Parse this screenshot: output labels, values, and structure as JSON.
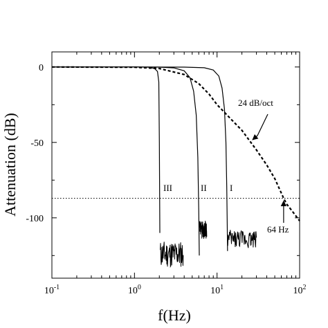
{
  "chart_data": {
    "type": "line",
    "xlabel": "f(Hz)",
    "ylabel": "Attenuation (dB)",
    "xscale": "log",
    "xlim": [
      0.1,
      100
    ],
    "ylim": [
      -140,
      10
    ],
    "x_ticks": [
      {
        "value": 0.1,
        "base": "10",
        "exp": "-1"
      },
      {
        "value": 1,
        "base": "10",
        "exp": "0"
      },
      {
        "value": 10,
        "base": "10",
        "exp": "1"
      },
      {
        "value": 100,
        "base": "10",
        "exp": "2"
      }
    ],
    "y_ticks": [
      {
        "value": 0,
        "label": "0"
      },
      {
        "value": -50,
        "label": "-50"
      },
      {
        "value": -100,
        "label": "-100"
      }
    ],
    "reference_line": {
      "y": -87,
      "style": "dotted"
    },
    "series": [
      {
        "name": "I",
        "style": "solid",
        "x": [
          0.1,
          1,
          4,
          7,
          9,
          10.5,
          11.5,
          12.3,
          12.8,
          13.1,
          13.3,
          13.4
        ],
        "y": [
          0,
          0,
          -0.1,
          -0.5,
          -2,
          -6,
          -14,
          -28,
          -50,
          -80,
          -105,
          -122
        ]
      },
      {
        "name": "II",
        "style": "solid",
        "x": [
          0.1,
          1,
          2,
          3,
          4,
          4.7,
          5.2,
          5.6,
          5.85,
          6.0,
          6.1
        ],
        "y": [
          0,
          0,
          -0.1,
          -0.6,
          -2.5,
          -7,
          -16,
          -32,
          -60,
          -95,
          -125
        ]
      },
      {
        "name": "III",
        "style": "solid",
        "x": [
          0.1,
          1,
          1.5,
          1.75,
          1.9,
          1.97,
          2.0,
          2.03
        ],
        "y": [
          0,
          0,
          -0.2,
          -1,
          -3,
          -10,
          -50,
          -110
        ]
      },
      {
        "name": "24 dB/oct",
        "style": "dashed",
        "x": [
          0.1,
          1,
          2,
          4,
          6,
          8,
          10,
          15,
          20,
          30,
          40,
          50,
          64,
          70,
          80,
          100
        ],
        "y": [
          0,
          -0.2,
          -1,
          -5,
          -11,
          -18,
          -25,
          -35,
          -42,
          -55,
          -65,
          -74,
          -87,
          -91,
          -95,
          -102
        ]
      }
    ],
    "annotations": [
      {
        "text": "24 dB/oct",
        "points_to": {
          "x": 35,
          "y": -52
        }
      },
      {
        "text": "64 Hz",
        "points_to": {
          "x": 64,
          "y": -87
        }
      },
      {
        "text": "I"
      },
      {
        "text": "II"
      },
      {
        "text": "III"
      }
    ]
  }
}
